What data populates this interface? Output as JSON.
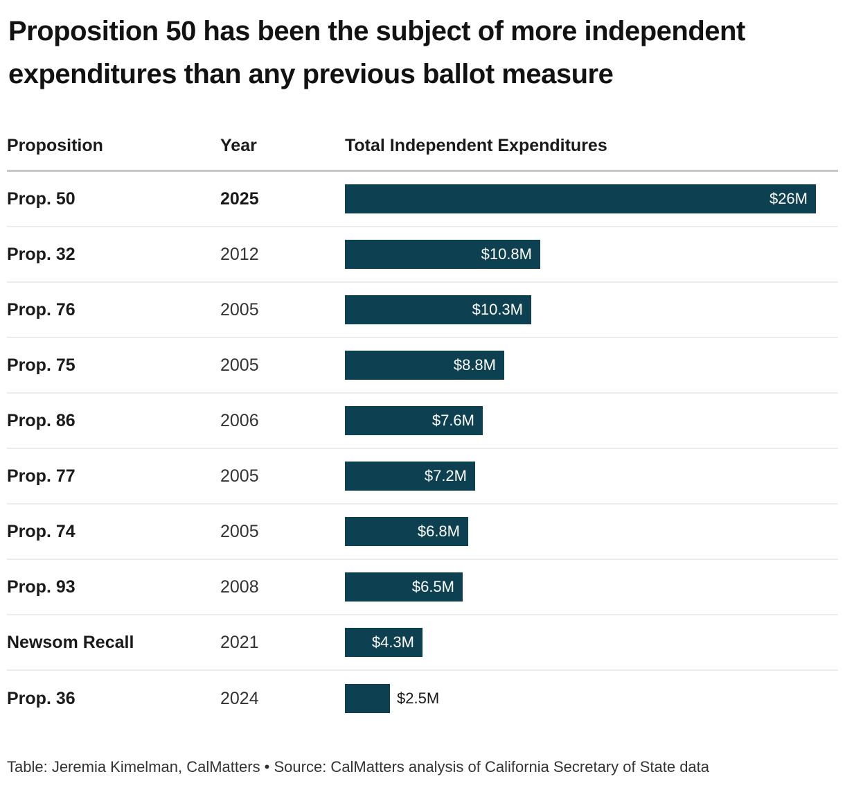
{
  "title": "Proposition 50 has been the subject of more independent expenditures than any previous ballot measure",
  "columns": {
    "proposition": "Proposition",
    "year": "Year",
    "expenditures": "Total Independent Expenditures"
  },
  "footer": "Table: Jeremia Kimelman, CalMatters • Source: CalMatters analysis of California Secretary of State data",
  "colors": {
    "bar": "#0d4151",
    "bar_label_inside": "#ffffff",
    "bar_label_outside": "#1a1a1a",
    "header_rule": "#c7c7c7",
    "row_rule": "#ededed",
    "title_text": "#121212",
    "body_text": "#1a1a1a",
    "footer_text": "#333333",
    "background": "#ffffff"
  },
  "chart_data": {
    "type": "bar",
    "orientation": "horizontal",
    "title": "Proposition 50 has been the subject of more independent expenditures than any previous ballot measure",
    "xlabel": "Total Independent Expenditures",
    "ylabel": "Proposition",
    "value_unit": "USD millions",
    "xlim": [
      0,
      26
    ],
    "grid": false,
    "legend": false,
    "categories": [
      "Prop. 50",
      "Prop. 32",
      "Prop. 76",
      "Prop. 75",
      "Prop. 86",
      "Prop. 77",
      "Prop. 74",
      "Prop. 93",
      "Newsom Recall",
      "Prop. 36"
    ],
    "rows": [
      {
        "proposition": "Prop. 50",
        "year": "2025",
        "value_millions": 26,
        "label": "$26M",
        "emphasis": true
      },
      {
        "proposition": "Prop. 32",
        "year": "2012",
        "value_millions": 10.8,
        "label": "$10.8M",
        "emphasis": false
      },
      {
        "proposition": "Prop. 76",
        "year": "2005",
        "value_millions": 10.3,
        "label": "$10.3M",
        "emphasis": false
      },
      {
        "proposition": "Prop. 75",
        "year": "2005",
        "value_millions": 8.8,
        "label": "$8.8M",
        "emphasis": false
      },
      {
        "proposition": "Prop. 86",
        "year": "2006",
        "value_millions": 7.6,
        "label": "$7.6M",
        "emphasis": false
      },
      {
        "proposition": "Prop. 77",
        "year": "2005",
        "value_millions": 7.2,
        "label": "$7.2M",
        "emphasis": false
      },
      {
        "proposition": "Prop. 74",
        "year": "2005",
        "value_millions": 6.8,
        "label": "$6.8M",
        "emphasis": false
      },
      {
        "proposition": "Prop. 93",
        "year": "2008",
        "value_millions": 6.5,
        "label": "$6.5M",
        "emphasis": false
      },
      {
        "proposition": "Newsom Recall",
        "year": "2021",
        "value_millions": 4.3,
        "label": "$4.3M",
        "emphasis": false
      },
      {
        "proposition": "Prop. 36",
        "year": "2024",
        "value_millions": 2.5,
        "label": "$2.5M",
        "emphasis": false
      }
    ]
  }
}
